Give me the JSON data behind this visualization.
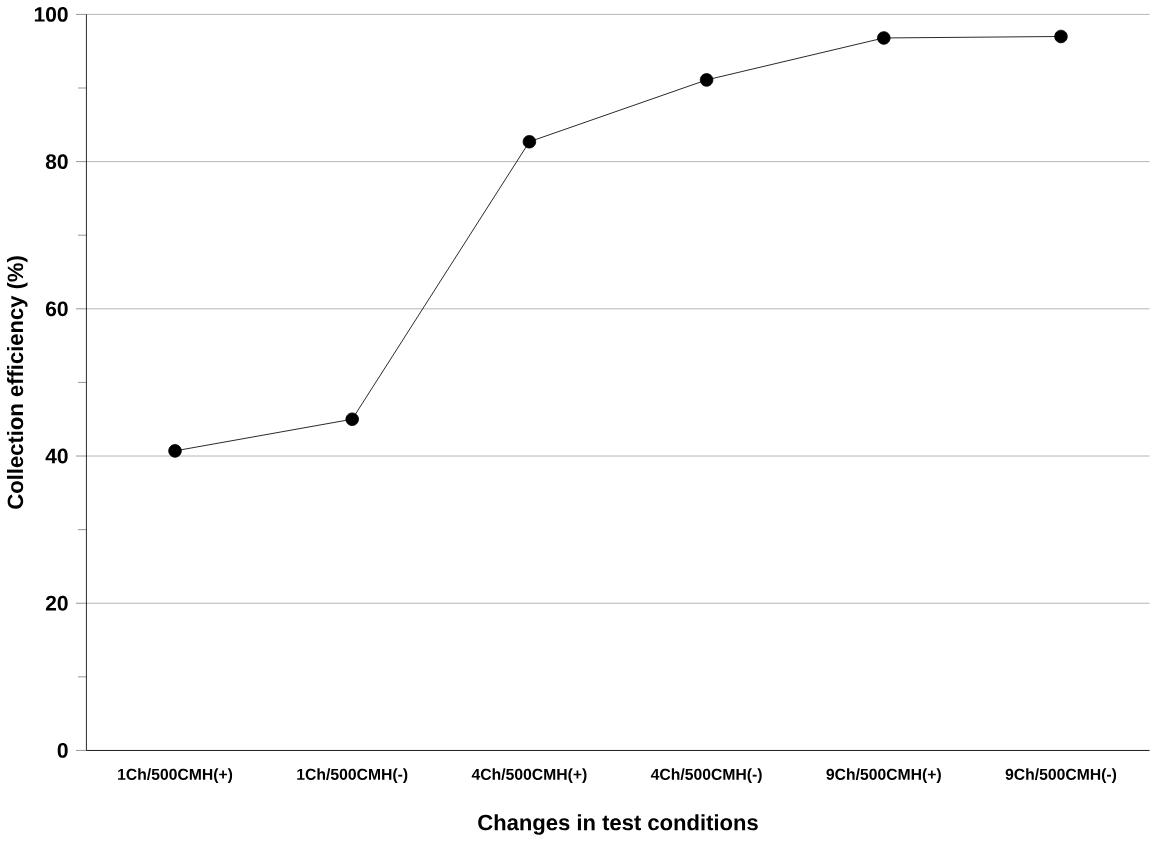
{
  "chart_data": {
    "type": "line",
    "xlabel": "Changes in test conditions",
    "ylabel": "Collection efficiency (%)",
    "categories": [
      "1Ch/500CMH(+)",
      "1Ch/500CMH(-)",
      "4Ch/500CMH(+)",
      "4Ch/500CMH(-)",
      "9Ch/500CMH(+)",
      "9Ch/500CMH(-)"
    ],
    "values": [
      40.7,
      45.0,
      82.7,
      91.1,
      96.8,
      97.0
    ],
    "color": "#000000",
    "marker": "circle",
    "line_style": "solid",
    "grid": "y",
    "ylim": [
      0,
      100
    ],
    "yticks": [
      0,
      20,
      40,
      60,
      80,
      100
    ]
  }
}
